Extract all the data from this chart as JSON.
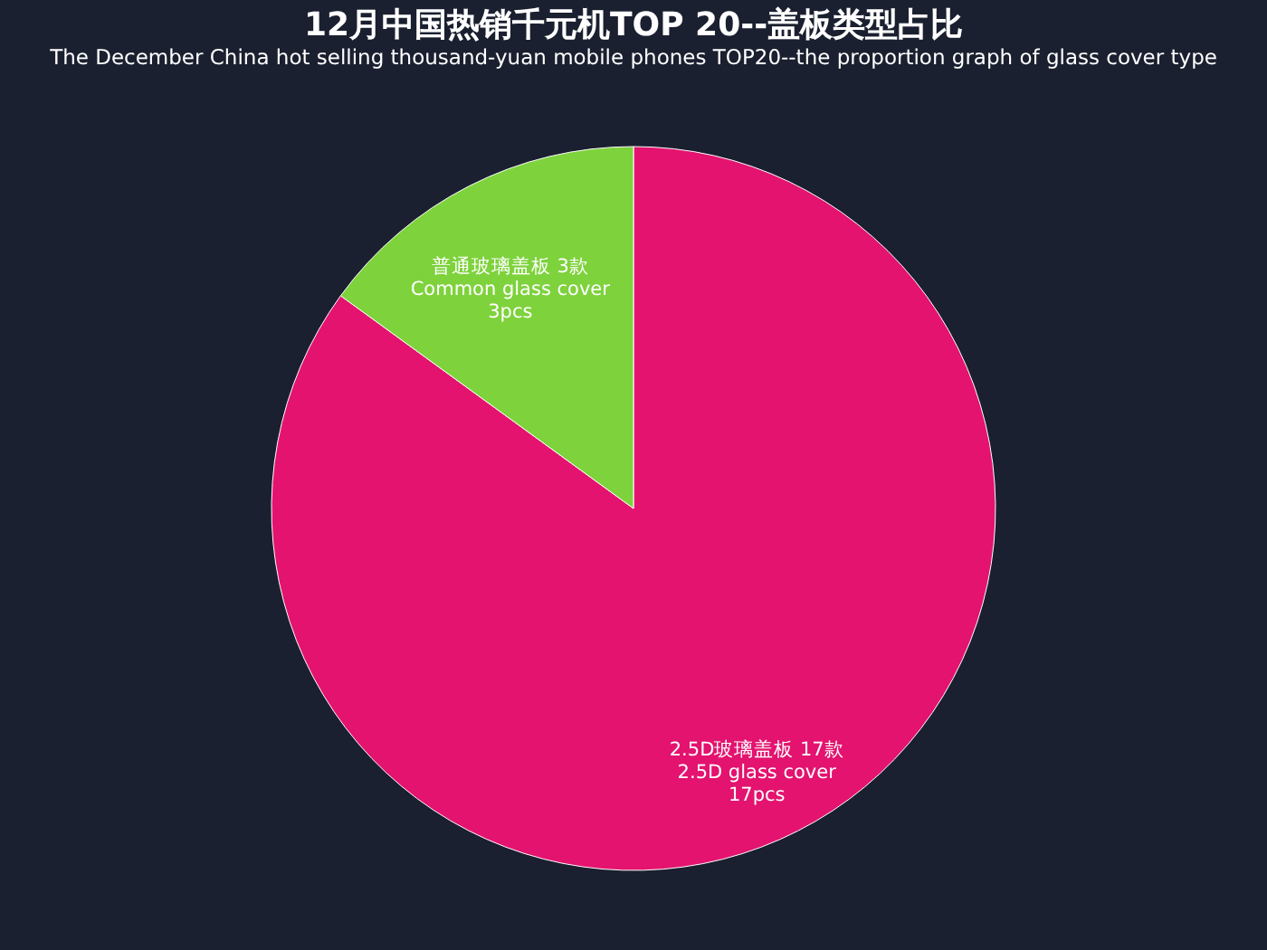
{
  "chart_data": {
    "type": "pie",
    "title": "12月中国热销千元机TOP 20--盖板类型占比",
    "subtitle": "The December China hot selling thousand-yuan mobile phones TOP20--the proportion graph of glass cover type",
    "categories": [
      "2.5D玻璃盖板 17款\n2.5D glass cover\n17pcs",
      "普通玻璃盖板 3款\nCommon glass cover\n3pcs"
    ],
    "values": [
      17,
      3
    ],
    "colors": [
      "#e3136f",
      "#7ed23c"
    ],
    "legend": false
  }
}
